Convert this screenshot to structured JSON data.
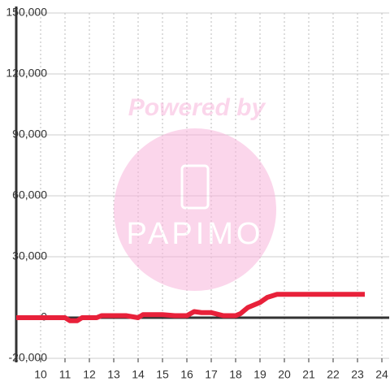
{
  "chart_data": {
    "type": "line",
    "watermark": {
      "top": "Powered by",
      "logo": "PAPIMO"
    },
    "x": [
      9,
      11,
      11.2,
      11.5,
      11.7,
      12.3,
      12.5,
      13,
      13.5,
      14,
      14.2,
      15,
      15.5,
      16,
      16.3,
      16.6,
      17,
      17.5,
      18,
      18.2,
      18.5,
      19,
      19.3,
      19.7,
      20,
      23.3
    ],
    "series": [
      {
        "color": "#e8213a",
        "values": [
          0,
          0,
          -1500,
          -1500,
          0,
          0,
          1000,
          1000,
          1000,
          0,
          1500,
          1500,
          1000,
          1000,
          3000,
          2500,
          2500,
          1000,
          1000,
          2000,
          5000,
          7500,
          10000,
          11500,
          11500,
          11500
        ]
      }
    ],
    "xlim": [
      9,
      24.3
    ],
    "xticks": [
      10,
      11,
      12,
      13,
      14,
      15,
      16,
      17,
      18,
      19,
      20,
      21,
      22,
      23,
      24
    ],
    "ylim": [
      -20000,
      150000
    ],
    "yticks": [
      {
        "value": -20000,
        "label": "-20,000"
      },
      0,
      {
        "value": 30000,
        "label": "30,000"
      },
      {
        "value": 60000,
        "label": "60,000"
      },
      {
        "value": 90000,
        "label": "90,000"
      },
      {
        "value": 120000,
        "label": "120,000"
      },
      {
        "value": 150000,
        "label": "150,000"
      }
    ],
    "grid": true
  }
}
